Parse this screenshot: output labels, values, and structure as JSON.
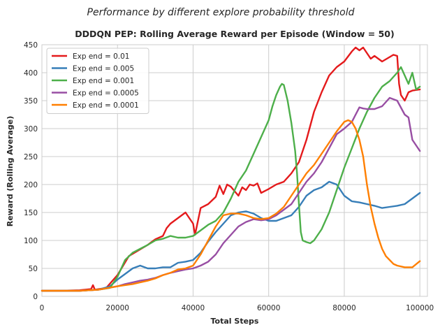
{
  "figure": {
    "suptitle": "Performance by different explore probability threshold"
  },
  "chart_data": {
    "type": "line",
    "title": "DDDQN PEP: Rolling Average Reward per Episode (Window = 50)",
    "xlabel": "Total Steps",
    "ylabel": "Reward (Rolling Average)",
    "xlim": [
      0,
      102000
    ],
    "ylim": [
      0,
      450
    ],
    "xticks": [
      0,
      20000,
      40000,
      60000,
      80000,
      100000
    ],
    "yticks": [
      0,
      50,
      100,
      150,
      200,
      250,
      300,
      350,
      400,
      450
    ],
    "grid": true,
    "legend_position": "top-left",
    "series": [
      {
        "name": "Exp end = 0.01",
        "color": "#e41a1c",
        "x": [
          0,
          5000,
          10000,
          13000,
          13500,
          14000,
          17000,
          20000,
          23000,
          25000,
          28000,
          30000,
          32000,
          33000,
          34000,
          36000,
          38000,
          40000,
          40500,
          42000,
          44000,
          46000,
          47000,
          48000,
          49000,
          50000,
          51000,
          52000,
          53000,
          54000,
          55000,
          56000,
          57000,
          58000,
          60000,
          62000,
          64000,
          66000,
          68000,
          70000,
          72000,
          74000,
          76000,
          78000,
          80000,
          82000,
          83000,
          84000,
          85000,
          86000,
          87000,
          88000,
          90000,
          92000,
          93000,
          94000,
          94500,
          95000,
          96000,
          97000,
          98000,
          100000
        ],
        "y": [
          10,
          10,
          11,
          13,
          20,
          12,
          15,
          38,
          72,
          80,
          92,
          102,
          108,
          122,
          130,
          140,
          150,
          130,
          110,
          158,
          165,
          178,
          198,
          183,
          200,
          196,
          188,
          180,
          195,
          190,
          200,
          198,
          202,
          185,
          192,
          200,
          205,
          220,
          240,
          280,
          330,
          365,
          395,
          410,
          420,
          438,
          445,
          440,
          445,
          435,
          425,
          430,
          420,
          428,
          432,
          430,
          380,
          360,
          350,
          365,
          368,
          370
        ]
      },
      {
        "name": "Exp end = 0.005",
        "color": "#377eb8",
        "x": [
          0,
          5000,
          10000,
          15000,
          18000,
          20000,
          22000,
          24000,
          26000,
          28000,
          30000,
          32000,
          34000,
          36000,
          38000,
          40000,
          42000,
          44000,
          46000,
          48000,
          50000,
          52000,
          54000,
          56000,
          58000,
          60000,
          62000,
          64000,
          66000,
          68000,
          70000,
          72000,
          74000,
          76000,
          78000,
          80000,
          82000,
          84000,
          86000,
          88000,
          90000,
          92000,
          94000,
          96000,
          98000,
          100000
        ],
        "y": [
          10,
          10,
          10,
          12,
          18,
          30,
          40,
          50,
          55,
          50,
          50,
          52,
          52,
          60,
          62,
          65,
          78,
          98,
          115,
          130,
          145,
          150,
          152,
          148,
          140,
          135,
          135,
          140,
          145,
          160,
          180,
          190,
          195,
          205,
          200,
          180,
          170,
          168,
          165,
          162,
          158,
          160,
          162,
          165,
          175,
          185
        ]
      },
      {
        "name": "Exp end = 0.001",
        "color": "#4daf4a",
        "x": [
          0,
          5000,
          10000,
          15000,
          18000,
          20000,
          22000,
          24000,
          26000,
          28000,
          30000,
          32000,
          34000,
          36000,
          38000,
          40000,
          42000,
          44000,
          46000,
          48000,
          50000,
          52000,
          54000,
          56000,
          58000,
          60000,
          61000,
          62000,
          63000,
          63500,
          64000,
          65000,
          66000,
          67000,
          67500,
          68000,
          68500,
          69000,
          70000,
          71000,
          72000,
          74000,
          76000,
          78000,
          80000,
          82000,
          84000,
          86000,
          88000,
          90000,
          92000,
          94000,
          95000,
          96000,
          97000,
          98000,
          99000,
          100000
        ],
        "y": [
          10,
          10,
          10,
          12,
          15,
          35,
          65,
          78,
          85,
          92,
          100,
          103,
          108,
          105,
          105,
          108,
          118,
          128,
          135,
          150,
          175,
          205,
          225,
          255,
          285,
          315,
          340,
          360,
          375,
          380,
          378,
          350,
          310,
          260,
          220,
          165,
          115,
          100,
          97,
          95,
          100,
          120,
          150,
          190,
          230,
          265,
          300,
          330,
          355,
          375,
          385,
          400,
          410,
          395,
          380,
          400,
          370,
          375
        ]
      },
      {
        "name": "Exp end = 0.0005",
        "color": "#984ea3",
        "x": [
          0,
          5000,
          10000,
          15000,
          20000,
          22000,
          24000,
          26000,
          28000,
          30000,
          32000,
          34000,
          36000,
          38000,
          40000,
          42000,
          44000,
          46000,
          48000,
          50000,
          52000,
          54000,
          56000,
          58000,
          60000,
          62000,
          64000,
          66000,
          68000,
          70000,
          72000,
          74000,
          76000,
          78000,
          80000,
          82000,
          84000,
          85000,
          86000,
          88000,
          90000,
          92000,
          94000,
          96000,
          97000,
          98000,
          99000,
          100000
        ],
        "y": [
          10,
          10,
          10,
          12,
          18,
          22,
          25,
          28,
          30,
          33,
          38,
          42,
          45,
          48,
          50,
          55,
          62,
          75,
          95,
          110,
          125,
          133,
          138,
          136,
          138,
          145,
          155,
          165,
          185,
          205,
          220,
          240,
          265,
          290,
          300,
          312,
          338,
          336,
          335,
          335,
          340,
          355,
          350,
          325,
          320,
          280,
          270,
          260
        ]
      },
      {
        "name": "Exp end = 0.0001",
        "color": "#ff7f00",
        "x": [
          0,
          5000,
          10000,
          15000,
          20000,
          22000,
          24000,
          26000,
          28000,
          30000,
          32000,
          34000,
          36000,
          38000,
          40000,
          42000,
          44000,
          46000,
          48000,
          50000,
          52000,
          54000,
          56000,
          58000,
          60000,
          62000,
          64000,
          66000,
          68000,
          70000,
          72000,
          74000,
          76000,
          78000,
          80000,
          81000,
          82000,
          83000,
          84000,
          85000,
          86000,
          87000,
          88000,
          89000,
          90000,
          91000,
          92000,
          93000,
          94000,
          96000,
          98000,
          100000
        ],
        "y": [
          10,
          10,
          10,
          12,
          18,
          20,
          22,
          25,
          28,
          32,
          38,
          42,
          48,
          50,
          55,
          75,
          100,
          125,
          145,
          148,
          148,
          145,
          140,
          138,
          140,
          148,
          160,
          180,
          200,
          220,
          235,
          255,
          275,
          295,
          312,
          315,
          312,
          300,
          280,
          250,
          200,
          160,
          130,
          105,
          85,
          72,
          65,
          58,
          55,
          52,
          52,
          63
        ]
      }
    ]
  }
}
